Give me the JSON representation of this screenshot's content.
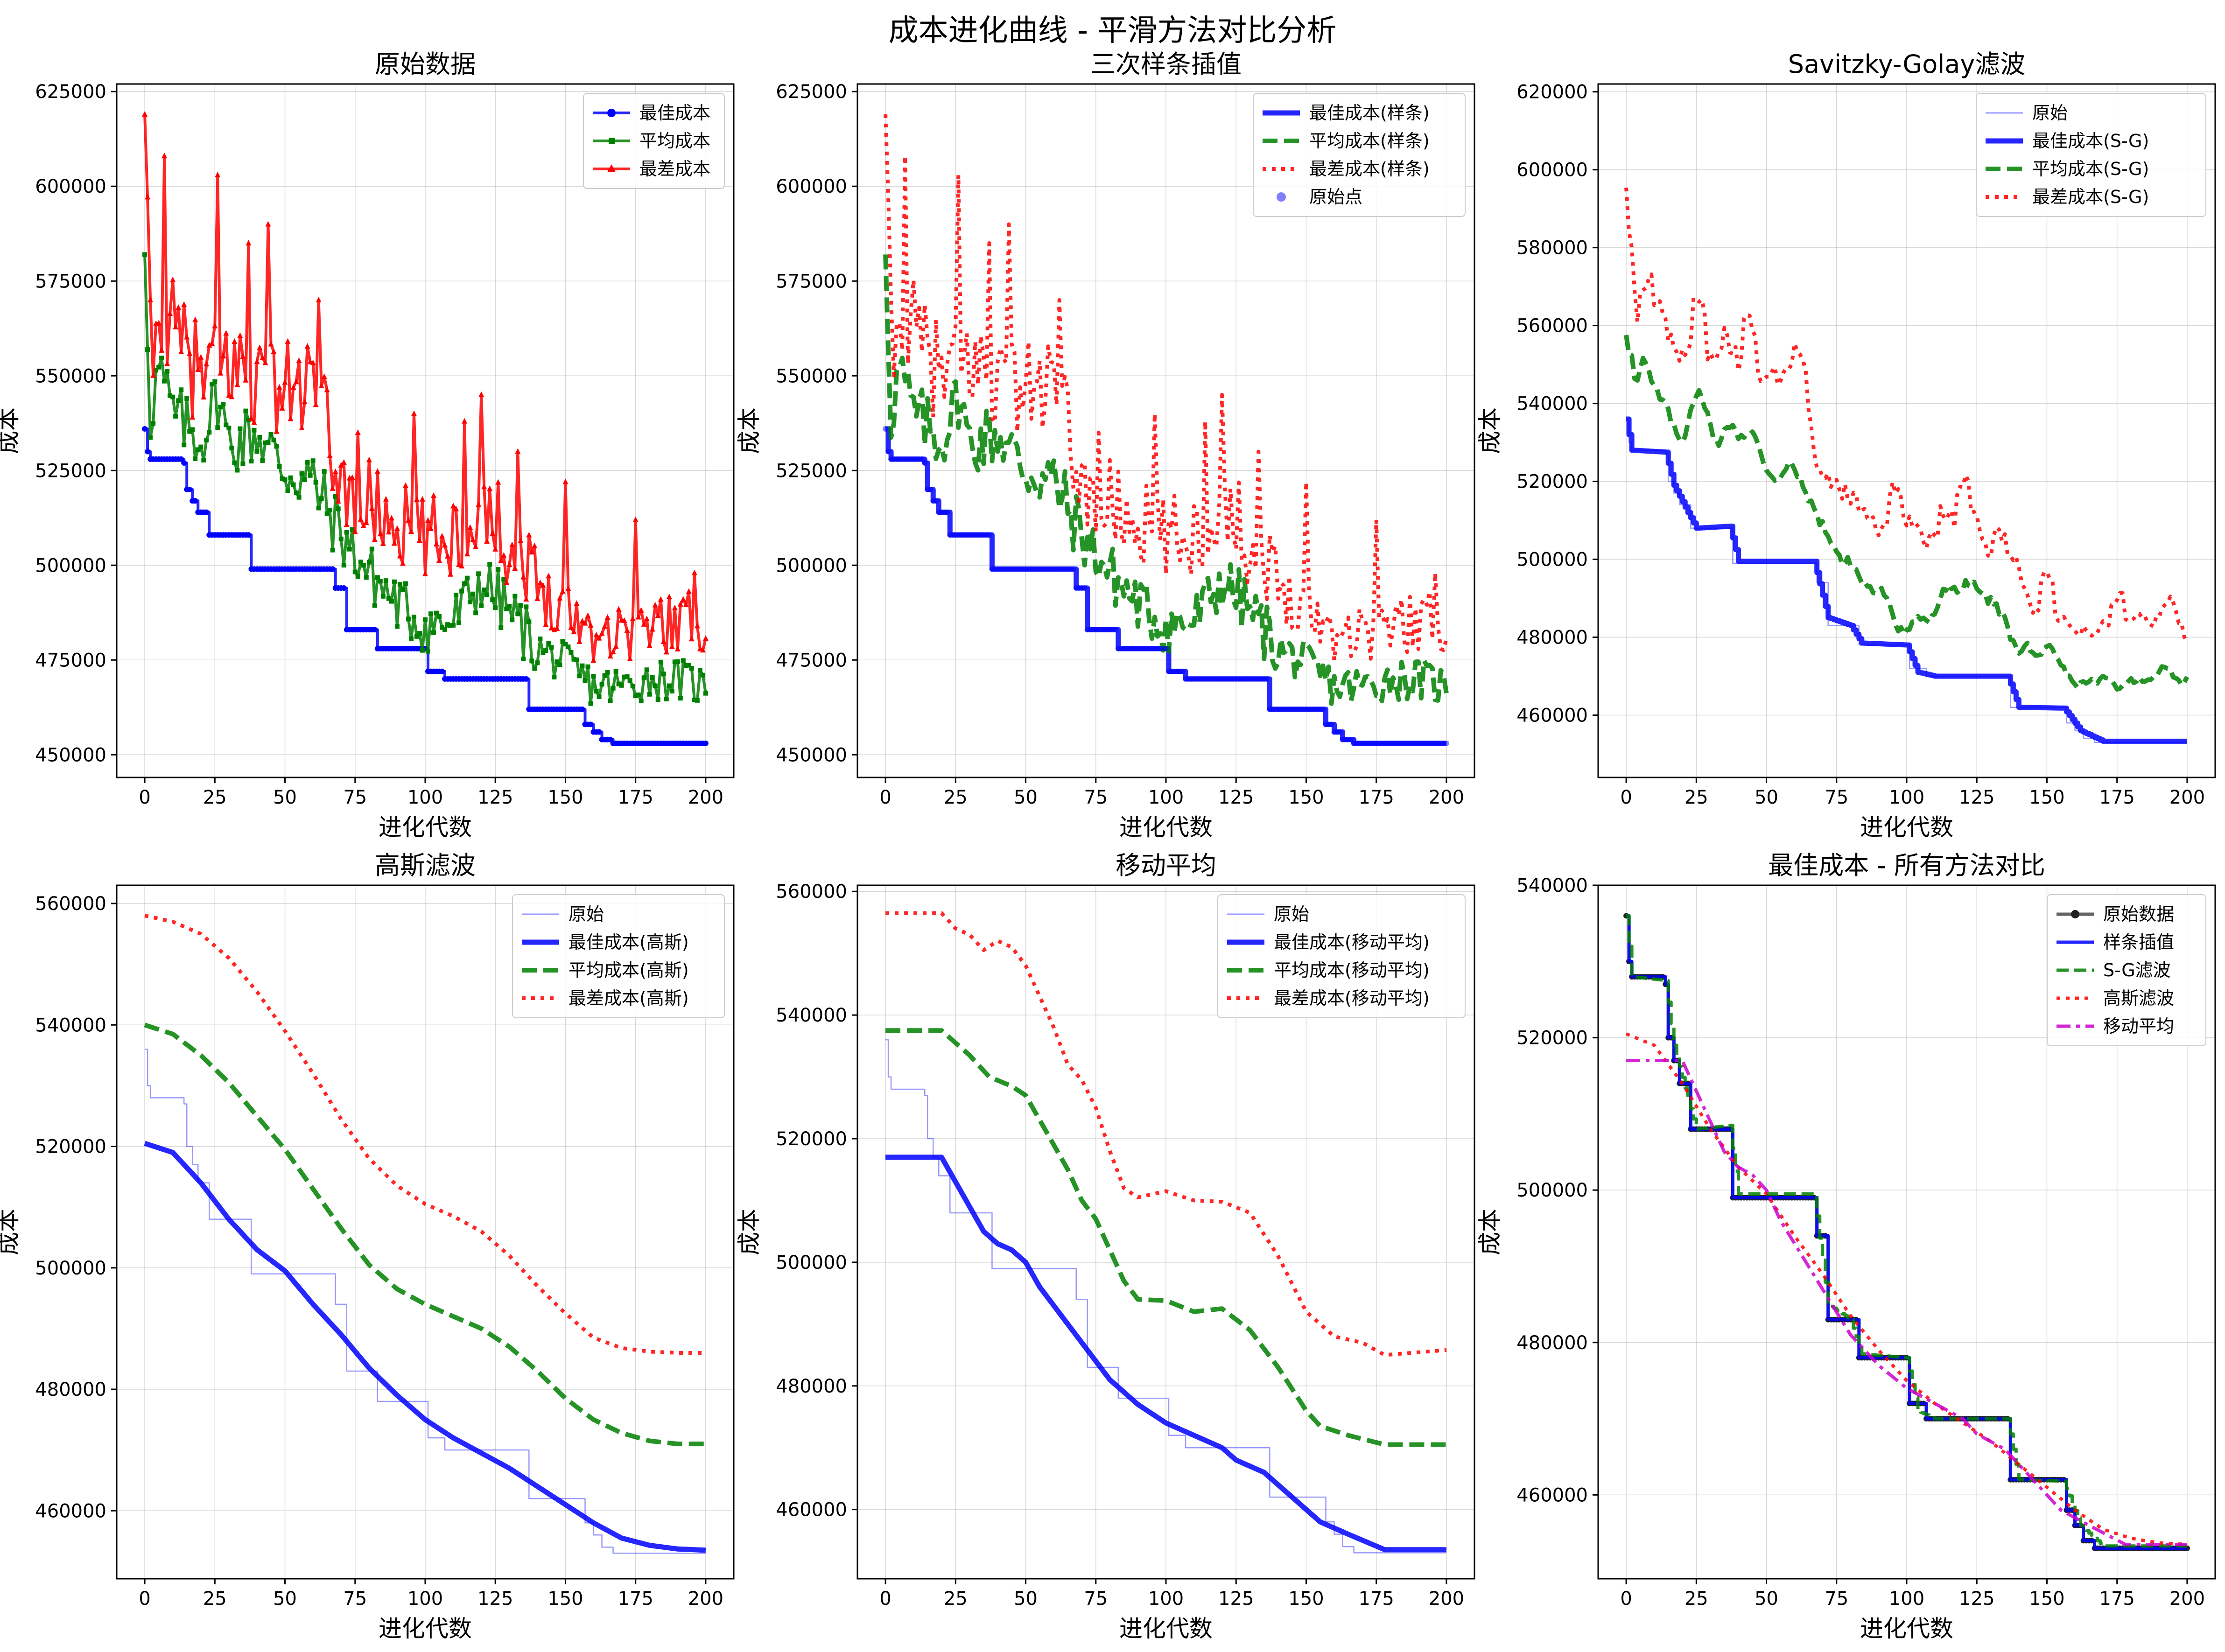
{
  "figure": {
    "suptitle": "成本进化曲线 - 平滑方法对比分析"
  },
  "colors": {
    "best": "#0000ff",
    "avg": "#008000",
    "worst": "#ff0000",
    "magenta": "#cc00cc",
    "dark": "#222222",
    "grid": "#b0b0b0"
  },
  "chart_data": [
    {
      "type": "line",
      "title": "原始数据",
      "xlabel": "进化代数",
      "ylabel": "成本",
      "xlim": [
        -10,
        210
      ],
      "ylim": [
        444000,
        627000
      ],
      "xticks": [
        0,
        25,
        50,
        75,
        100,
        125,
        150,
        175,
        200
      ],
      "yticks": [
        450000,
        475000,
        500000,
        525000,
        550000,
        575000,
        600000,
        625000
      ],
      "grid": true,
      "legend": "top-right",
      "series": [
        {
          "name": "最佳成本",
          "role": "best",
          "style": "raw",
          "marker": "circle"
        },
        {
          "name": "平均成本",
          "role": "avg",
          "style": "raw",
          "marker": "square"
        },
        {
          "name": "最差成本",
          "role": "worst",
          "style": "raw",
          "marker": "triangle"
        }
      ]
    },
    {
      "type": "line",
      "title": "三次样条插值",
      "xlabel": "进化代数",
      "ylabel": "成本",
      "xlim": [
        -10,
        210
      ],
      "ylim": [
        444000,
        627000
      ],
      "xticks": [
        0,
        25,
        50,
        75,
        100,
        125,
        150,
        175,
        200
      ],
      "yticks": [
        450000,
        475000,
        500000,
        525000,
        550000,
        575000,
        600000,
        625000
      ],
      "grid": true,
      "legend": "top-right",
      "series": [
        {
          "name": "最佳成本(样条)",
          "role": "best",
          "style": "solid"
        },
        {
          "name": "平均成本(样条)",
          "role": "avg",
          "style": "dashed"
        },
        {
          "name": "最差成本(样条)",
          "role": "worst",
          "style": "dotted"
        },
        {
          "name": "原始点",
          "role": "best",
          "style": "points"
        }
      ]
    },
    {
      "type": "line",
      "title": "Savitzky-Golay滤波",
      "xlabel": "进化代数",
      "ylabel": "成本",
      "xlim": [
        -10,
        210
      ],
      "ylim": [
        444000,
        622000
      ],
      "xticks": [
        0,
        25,
        50,
        75,
        100,
        125,
        150,
        175,
        200
      ],
      "yticks": [
        460000,
        480000,
        500000,
        520000,
        540000,
        560000,
        580000,
        600000,
        620000
      ],
      "grid": true,
      "legend": "top-right",
      "series": [
        {
          "name": "原始",
          "role": "best",
          "style": "thin"
        },
        {
          "name": "最佳成本(S-G)",
          "role": "best",
          "style": "solid"
        },
        {
          "name": "平均成本(S-G)",
          "role": "avg",
          "style": "dashed"
        },
        {
          "name": "最差成本(S-G)",
          "role": "worst",
          "style": "dotted"
        }
      ]
    },
    {
      "type": "line",
      "title": "高斯滤波",
      "xlabel": "进化代数",
      "ylabel": "成本",
      "xlim": [
        -10,
        210
      ],
      "ylim": [
        448800,
        563000
      ],
      "xticks": [
        0,
        25,
        50,
        75,
        100,
        125,
        150,
        175,
        200
      ],
      "yticks": [
        460000,
        480000,
        500000,
        520000,
        540000,
        560000
      ],
      "grid": true,
      "legend": "top-right",
      "series": [
        {
          "name": "原始",
          "role": "best",
          "style": "thin"
        },
        {
          "name": "最佳成本(高斯)",
          "role": "best",
          "style": "solid"
        },
        {
          "name": "平均成本(高斯)",
          "role": "avg",
          "style": "dashed"
        },
        {
          "name": "最差成本(高斯)",
          "role": "worst",
          "style": "dotted"
        }
      ]
    },
    {
      "type": "line",
      "title": "移动平均",
      "xlabel": "进化代数",
      "ylabel": "成本",
      "xlim": [
        -10,
        210
      ],
      "ylim": [
        448800,
        561000
      ],
      "xticks": [
        0,
        25,
        50,
        75,
        100,
        125,
        150,
        175,
        200
      ],
      "yticks": [
        460000,
        480000,
        500000,
        520000,
        540000,
        560000
      ],
      "grid": true,
      "legend": "top-right",
      "series": [
        {
          "name": "原始",
          "role": "best",
          "style": "thin"
        },
        {
          "name": "最佳成本(移动平均)",
          "role": "best",
          "style": "solid"
        },
        {
          "name": "平均成本(移动平均)",
          "role": "avg",
          "style": "dashed"
        },
        {
          "name": "最差成本(移动平均)",
          "role": "worst",
          "style": "dotted"
        }
      ]
    },
    {
      "type": "line",
      "title": "最佳成本 - 所有方法对比",
      "xlabel": "进化代数",
      "ylabel": "成本",
      "xlim": [
        -10,
        210
      ],
      "ylim": [
        449000,
        540000
      ],
      "xticks": [
        0,
        25,
        50,
        75,
        100,
        125,
        150,
        175,
        200
      ],
      "yticks": [
        460000,
        480000,
        500000,
        520000,
        540000
      ],
      "grid": true,
      "legend": "top-right",
      "series": [
        {
          "name": "原始数据",
          "role": "dark",
          "style": "rawdark"
        },
        {
          "name": "样条插值",
          "role": "best",
          "style": "solidthin"
        },
        {
          "name": "S-G滤波",
          "role": "avg",
          "style": "dashedthin"
        },
        {
          "name": "高斯滤波",
          "role": "worst",
          "style": "dottedthin"
        },
        {
          "name": "移动平均",
          "role": "magenta",
          "style": "dashdot"
        }
      ]
    }
  ],
  "series_values": {
    "best_steps": [
      [
        0,
        536000
      ],
      [
        1,
        530000
      ],
      [
        2,
        528000
      ],
      [
        14,
        527000
      ],
      [
        15,
        520000
      ],
      [
        17,
        517000
      ],
      [
        19,
        514000
      ],
      [
        23,
        508000
      ],
      [
        38,
        499000
      ],
      [
        68,
        494000
      ],
      [
        72,
        483000
      ],
      [
        83,
        478000
      ],
      [
        101,
        472000
      ],
      [
        107,
        470000
      ],
      [
        137,
        462000
      ],
      [
        157,
        458000
      ],
      [
        160,
        456000
      ],
      [
        163,
        454000
      ],
      [
        167,
        453000
      ],
      [
        200,
        453000
      ]
    ],
    "avg_anchor": [
      [
        0,
        582000
      ],
      [
        2,
        540000
      ],
      [
        5,
        552000
      ],
      [
        10,
        540000
      ],
      [
        20,
        533000
      ],
      [
        26,
        545000
      ],
      [
        30,
        532000
      ],
      [
        40,
        535000
      ],
      [
        50,
        525000
      ],
      [
        60,
        522000
      ],
      [
        70,
        508000
      ],
      [
        80,
        498000
      ],
      [
        90,
        490000
      ],
      [
        100,
        484000
      ],
      [
        110,
        485000
      ],
      [
        120,
        496000
      ],
      [
        130,
        488000
      ],
      [
        140,
        478000
      ],
      [
        150,
        474000
      ],
      [
        160,
        468000
      ],
      [
        170,
        468000
      ],
      [
        180,
        470000
      ],
      [
        190,
        470000
      ],
      [
        200,
        468000
      ]
    ],
    "worst_anchor": [
      [
        0,
        619000
      ],
      [
        2,
        555000
      ],
      [
        10,
        560000
      ],
      [
        20,
        548000
      ],
      [
        30,
        552000
      ],
      [
        40,
        548000
      ],
      [
        50,
        545000
      ],
      [
        60,
        545000
      ],
      [
        70,
        520000
      ],
      [
        80,
        515000
      ],
      [
        90,
        510000
      ],
      [
        100,
        505000
      ],
      [
        110,
        507000
      ],
      [
        120,
        515000
      ],
      [
        130,
        505000
      ],
      [
        140,
        493000
      ],
      [
        150,
        488000
      ],
      [
        160,
        482000
      ],
      [
        170,
        482000
      ],
      [
        180,
        483000
      ],
      [
        190,
        485000
      ],
      [
        200,
        484000
      ]
    ],
    "worst_spikes": [
      [
        7,
        608000
      ],
      [
        12,
        568000
      ],
      [
        26,
        603000
      ],
      [
        37,
        585000
      ],
      [
        44,
        590000
      ],
      [
        62,
        570000
      ],
      [
        76,
        535000
      ],
      [
        96,
        540000
      ],
      [
        114,
        538000
      ],
      [
        120,
        545000
      ],
      [
        133,
        530000
      ],
      [
        150,
        522000
      ],
      [
        175,
        512000
      ],
      [
        196,
        498000
      ]
    ],
    "gauss_best": [
      [
        0,
        520500
      ],
      [
        10,
        519000
      ],
      [
        20,
        514000
      ],
      [
        30,
        508000
      ],
      [
        40,
        503000
      ],
      [
        50,
        499500
      ],
      [
        60,
        494000
      ],
      [
        70,
        489000
      ],
      [
        80,
        483500
      ],
      [
        90,
        479000
      ],
      [
        100,
        475000
      ],
      [
        110,
        472000
      ],
      [
        120,
        469500
      ],
      [
        130,
        467000
      ],
      [
        140,
        464000
      ],
      [
        150,
        461000
      ],
      [
        160,
        458000
      ],
      [
        170,
        455500
      ],
      [
        180,
        454300
      ],
      [
        190,
        453700
      ],
      [
        200,
        453500
      ]
    ],
    "gauss_avg": [
      [
        0,
        540000
      ],
      [
        10,
        538500
      ],
      [
        20,
        535000
      ],
      [
        30,
        530500
      ],
      [
        40,
        525000
      ],
      [
        50,
        519500
      ],
      [
        60,
        513000
      ],
      [
        70,
        506500
      ],
      [
        80,
        500500
      ],
      [
        90,
        496500
      ],
      [
        100,
        494000
      ],
      [
        110,
        492000
      ],
      [
        120,
        490000
      ],
      [
        130,
        487000
      ],
      [
        140,
        483000
      ],
      [
        150,
        478500
      ],
      [
        160,
        475000
      ],
      [
        170,
        472800
      ],
      [
        180,
        471500
      ],
      [
        190,
        471000
      ],
      [
        200,
        471000
      ]
    ],
    "gauss_worst": [
      [
        0,
        558000
      ],
      [
        10,
        557000
      ],
      [
        20,
        555000
      ],
      [
        30,
        551000
      ],
      [
        40,
        545500
      ],
      [
        50,
        539000
      ],
      [
        60,
        532000
      ],
      [
        70,
        524500
      ],
      [
        80,
        518000
      ],
      [
        90,
        513500
      ],
      [
        100,
        510500
      ],
      [
        110,
        508500
      ],
      [
        120,
        506000
      ],
      [
        130,
        502000
      ],
      [
        140,
        497000
      ],
      [
        150,
        492500
      ],
      [
        160,
        488500
      ],
      [
        170,
        486800
      ],
      [
        180,
        486200
      ],
      [
        190,
        486000
      ],
      [
        200,
        486000
      ]
    ],
    "ma_best": [
      [
        0,
        517000
      ],
      [
        20,
        517000
      ],
      [
        25,
        513000
      ],
      [
        30,
        509000
      ],
      [
        35,
        505000
      ],
      [
        40,
        503000
      ],
      [
        45,
        502000
      ],
      [
        50,
        500000
      ],
      [
        55,
        496000
      ],
      [
        60,
        493000
      ],
      [
        70,
        487000
      ],
      [
        80,
        481000
      ],
      [
        90,
        477000
      ],
      [
        100,
        474000
      ],
      [
        110,
        472000
      ],
      [
        120,
        470000
      ],
      [
        125,
        468000
      ],
      [
        135,
        466000
      ],
      [
        145,
        462000
      ],
      [
        155,
        458000
      ],
      [
        165,
        456000
      ],
      [
        178,
        453500
      ],
      [
        200,
        453500
      ]
    ],
    "ma_avg": [
      [
        0,
        537500
      ],
      [
        20,
        537500
      ],
      [
        25,
        535500
      ],
      [
        30,
        533500
      ],
      [
        37,
        530000
      ],
      [
        45,
        528500
      ],
      [
        50,
        527000
      ],
      [
        55,
        523000
      ],
      [
        60,
        519000
      ],
      [
        65,
        515000
      ],
      [
        70,
        510000
      ],
      [
        75,
        507000
      ],
      [
        80,
        502000
      ],
      [
        85,
        497000
      ],
      [
        90,
        494000
      ],
      [
        100,
        493800
      ],
      [
        110,
        492000
      ],
      [
        120,
        492500
      ],
      [
        130,
        489000
      ],
      [
        140,
        483000
      ],
      [
        150,
        476000
      ],
      [
        155,
        473500
      ],
      [
        165,
        472000
      ],
      [
        178,
        470500
      ],
      [
        200,
        470500
      ]
    ],
    "ma_worst": [
      [
        0,
        556500
      ],
      [
        20,
        556500
      ],
      [
        25,
        554000
      ],
      [
        30,
        553000
      ],
      [
        35,
        550500
      ],
      [
        40,
        552000
      ],
      [
        45,
        551000
      ],
      [
        50,
        548000
      ],
      [
        55,
        543000
      ],
      [
        60,
        538000
      ],
      [
        65,
        532000
      ],
      [
        70,
        529500
      ],
      [
        75,
        525000
      ],
      [
        80,
        518000
      ],
      [
        85,
        512000
      ],
      [
        90,
        510500
      ],
      [
        100,
        511500
      ],
      [
        110,
        510000
      ],
      [
        120,
        509800
      ],
      [
        130,
        508000
      ],
      [
        140,
        501000
      ],
      [
        150,
        492000
      ],
      [
        160,
        488000
      ],
      [
        170,
        487000
      ],
      [
        178,
        485000
      ],
      [
        200,
        485800
      ]
    ],
    "sg_best": [
      [
        0,
        536000
      ],
      [
        2,
        528000
      ],
      [
        14,
        527500
      ],
      [
        17,
        519000
      ],
      [
        22,
        512000
      ],
      [
        25,
        508000
      ],
      [
        37,
        508500
      ],
      [
        40,
        499500
      ],
      [
        67,
        499500
      ],
      [
        72,
        485000
      ],
      [
        80,
        483000
      ],
      [
        84,
        478500
      ],
      [
        100,
        478000
      ],
      [
        104,
        471000
      ],
      [
        110,
        470000
      ],
      [
        136,
        470000
      ],
      [
        140,
        462000
      ],
      [
        156,
        461800
      ],
      [
        162,
        456000
      ],
      [
        170,
        453300
      ],
      [
        200,
        453300
      ]
    ]
  }
}
